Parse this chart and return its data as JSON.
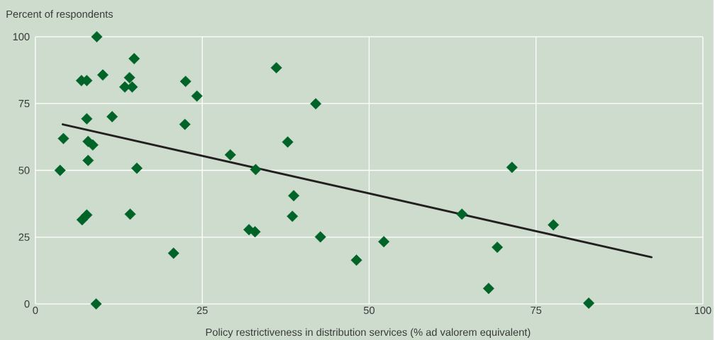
{
  "chart_data": {
    "type": "scatter",
    "ylabel": "Percent of respondents",
    "xlabel": "Policy restrictiveness in distribution services (% ad valorem equivalent)",
    "xlim": [
      0,
      100
    ],
    "ylim": [
      0,
      100
    ],
    "xticks": [
      0,
      25,
      50,
      75,
      100
    ],
    "yticks": [
      0,
      25,
      50,
      75,
      100
    ],
    "grid": true,
    "marker": "diamond",
    "series": [
      {
        "color": "#006428",
        "x": [
          3.7,
          4.2,
          9.2,
          6.9,
          7.7,
          10.1,
          14.8,
          14.1,
          13.4,
          14.5,
          7.7,
          11.5,
          7.9,
          8.6,
          7.9,
          15.2,
          7.0,
          7.7,
          14.2,
          9.1,
          20.7,
          22.5,
          22.4,
          24.2,
          29.2,
          33.0,
          32.0,
          32.9,
          36.1,
          42.0,
          37.8,
          38.7,
          38.5,
          42.7,
          48.1,
          52.2,
          63.9,
          71.4,
          77.6,
          69.2,
          67.9,
          82.9
        ],
        "values": [
          50.0,
          61.9,
          100,
          83.6,
          83.6,
          85.7,
          91.8,
          84.7,
          81.2,
          81.2,
          69.3,
          70.1,
          60.8,
          59.5,
          53.7,
          50.8,
          31.5,
          33.3,
          33.6,
          0,
          19.0,
          83.3,
          67.2,
          77.8,
          55.8,
          50.3,
          27.8,
          27.0,
          88.4,
          74.9,
          60.6,
          40.5,
          32.8,
          25.1,
          16.4,
          23.3,
          33.6,
          51.1,
          29.6,
          21.2,
          5.8,
          0.3
        ]
      },
      {
        "type": "line",
        "color": "#231f20",
        "marker": "none",
        "x": [
          4.1,
          92.3
        ],
        "values": [
          67.2,
          17.5
        ]
      }
    ]
  }
}
